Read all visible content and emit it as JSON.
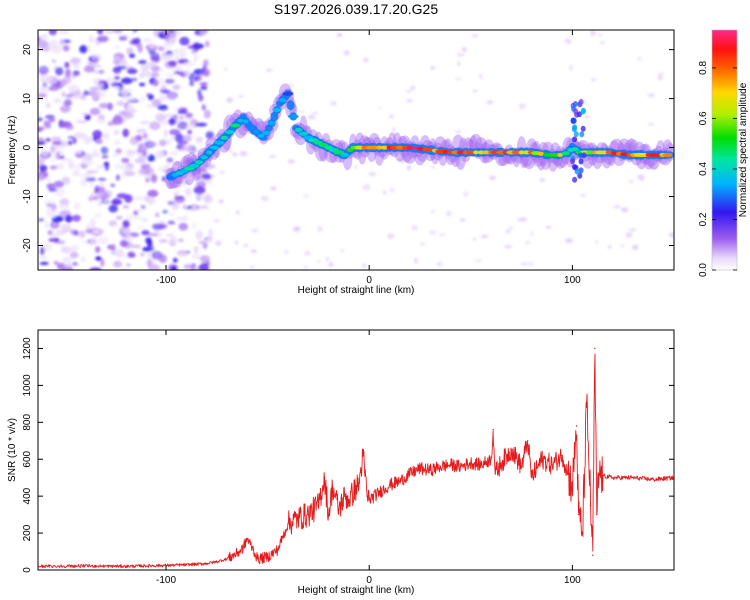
{
  "title": "S197.2026.039.17.20.G25",
  "chart_data": [
    {
      "type": "heatmap",
      "xlabel": "Height of straight line (km)",
      "ylabel": "Frequency (Hz)",
      "xlim": [
        -163,
        150
      ],
      "ylim": [
        -25,
        24
      ],
      "xticks": [
        -100,
        0,
        100
      ],
      "yticks": [
        -20,
        -10,
        0,
        10,
        20
      ],
      "colorbar": {
        "label": "Normalized spectral amplitude",
        "range": [
          0,
          0.95
        ],
        "ticks": [
          "0.0",
          "0.2",
          "0.4",
          "0.6",
          "0.8"
        ],
        "tick_values": [
          0,
          0.2,
          0.4,
          0.6,
          0.8
        ]
      },
      "noise_region": [
        -163,
        -78
      ],
      "ridge": [
        [
          -98,
          -6,
          0.35
        ],
        [
          -92,
          -5,
          0.42
        ],
        [
          -85,
          -3.5,
          0.45
        ],
        [
          -80,
          -1.5,
          0.4
        ],
        [
          -75,
          0.5,
          0.42
        ],
        [
          -70,
          2.5,
          0.45
        ],
        [
          -66,
          4.5,
          0.45
        ],
        [
          -62,
          6,
          0.4
        ],
        [
          -58,
          4,
          0.35
        ],
        [
          -52,
          2,
          0.4
        ],
        [
          -48,
          5,
          0.4
        ],
        [
          -44,
          9,
          0.38
        ],
        [
          -40,
          11,
          0.3
        ],
        [
          -36,
          4,
          0.4
        ],
        [
          -30,
          2,
          0.42
        ],
        [
          -25,
          1,
          0.45
        ],
        [
          -20,
          0,
          0.5
        ],
        [
          -15,
          -1,
          0.5
        ],
        [
          -12,
          -1.5,
          0.4
        ],
        [
          -8,
          0,
          0.6
        ],
        [
          0,
          0,
          0.85
        ],
        [
          10,
          0,
          0.9
        ],
        [
          20,
          0,
          0.9
        ],
        [
          30,
          -0.5,
          0.85
        ],
        [
          40,
          -1,
          0.85
        ],
        [
          50,
          -1,
          0.85
        ],
        [
          60,
          -1,
          0.8
        ],
        [
          70,
          -1,
          0.85
        ],
        [
          80,
          -1,
          0.8
        ],
        [
          88,
          -1.5,
          0.6
        ],
        [
          94,
          -1.5,
          0.7
        ],
        [
          98,
          -1,
          0.5
        ],
        [
          100,
          0,
          0.4
        ],
        [
          104,
          -1,
          0.55
        ],
        [
          110,
          -1,
          0.7
        ],
        [
          118,
          -1,
          0.85
        ],
        [
          128,
          -1.5,
          0.85
        ],
        [
          140,
          -1.5,
          0.85
        ],
        [
          148,
          -1.5,
          0.85
        ]
      ]
    },
    {
      "type": "line",
      "xlabel": "Height of straight line (km)",
      "ylabel": "SNR (10 * v/v)",
      "xlim": [
        -163,
        150
      ],
      "ylim": [
        0,
        1300
      ],
      "xticks": [
        -100,
        0,
        100
      ],
      "yticks": [
        0,
        200,
        400,
        600,
        800,
        1000,
        1200
      ],
      "series": [
        {
          "name": "SNR",
          "color": "#e41a1c",
          "x": [
            -163,
            -140,
            -120,
            -100,
            -90,
            -80,
            -75,
            -70,
            -65,
            -62,
            -60,
            -57,
            -55,
            -50,
            -45,
            -40,
            -35,
            -30,
            -25,
            -22,
            -20,
            -18,
            -15,
            -12,
            -10,
            -5,
            -3,
            -1,
            0,
            5,
            10,
            15,
            20,
            25,
            30,
            35,
            40,
            45,
            50,
            55,
            60,
            61,
            62,
            65,
            70,
            75,
            78,
            80,
            85,
            90,
            95,
            98,
            100,
            102,
            103,
            105,
            107,
            109,
            110,
            111,
            112,
            113,
            115,
            120,
            130,
            140,
            150
          ],
          "y": [
            20,
            22,
            20,
            25,
            28,
            35,
            45,
            60,
            90,
            120,
            170,
            110,
            60,
            70,
            110,
            250,
            280,
            300,
            350,
            500,
            300,
            450,
            330,
            400,
            380,
            470,
            620,
            400,
            380,
            420,
            460,
            480,
            520,
            550,
            540,
            560,
            570,
            560,
            580,
            570,
            600,
            760,
            520,
            580,
            650,
            560,
            700,
            500,
            600,
            570,
            620,
            520,
            450,
            780,
            300,
            200,
            900,
            350,
            80,
            1200,
            300,
            520,
            510,
            500,
            500,
            490,
            500
          ]
        }
      ]
    }
  ]
}
